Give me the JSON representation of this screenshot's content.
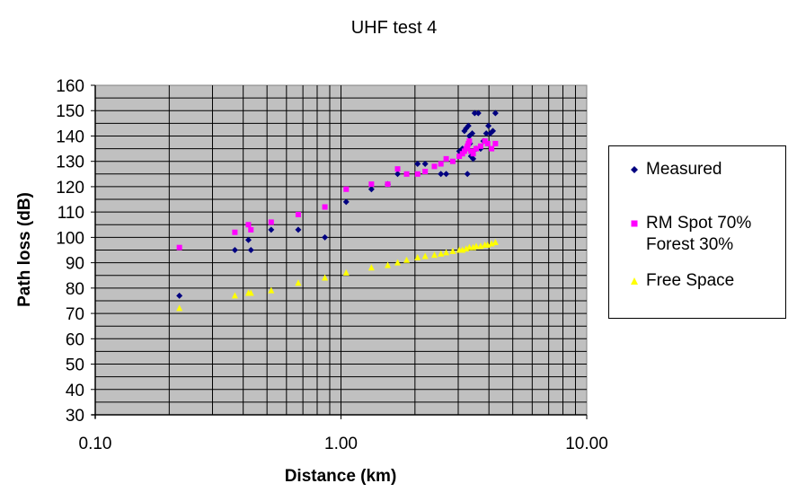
{
  "chart_data": {
    "type": "scatter",
    "title": "UHF test 4",
    "xlabel": "Distance (km)",
    "ylabel": "Path loss (dB)",
    "xscale": "log",
    "xlim": [
      0.1,
      10
    ],
    "ylim": [
      30,
      160
    ],
    "x_ticks": [
      "0.10",
      "1.00",
      "10.00"
    ],
    "y_ticks": [
      "30",
      "40",
      "50",
      "60",
      "70",
      "80",
      "90",
      "100",
      "110",
      "120",
      "130",
      "140",
      "150",
      "160"
    ],
    "grid": true,
    "plot_background": "#c0c0c0",
    "legend_position": "right",
    "series": [
      {
        "name": "Measured",
        "marker": "diamond",
        "color": "#000080",
        "points": [
          [
            0.22,
            77
          ],
          [
            0.37,
            95
          ],
          [
            0.42,
            99
          ],
          [
            0.43,
            95
          ],
          [
            0.52,
            103
          ],
          [
            0.67,
            103
          ],
          [
            0.86,
            100
          ],
          [
            1.05,
            114
          ],
          [
            1.33,
            119
          ],
          [
            1.55,
            121
          ],
          [
            1.7,
            125
          ],
          [
            2.05,
            129
          ],
          [
            2.2,
            129
          ],
          [
            2.55,
            125
          ],
          [
            2.68,
            125
          ],
          [
            3.03,
            134
          ],
          [
            3.12,
            135
          ],
          [
            3.18,
            142
          ],
          [
            3.23,
            143
          ],
          [
            3.27,
            125
          ],
          [
            3.3,
            144
          ],
          [
            3.33,
            140
          ],
          [
            3.35,
            137
          ],
          [
            3.38,
            132
          ],
          [
            3.42,
            141
          ],
          [
            3.45,
            131
          ],
          [
            3.5,
            149
          ],
          [
            3.55,
            135
          ],
          [
            3.62,
            149
          ],
          [
            3.7,
            135
          ],
          [
            3.8,
            138
          ],
          [
            3.9,
            141
          ],
          [
            3.98,
            144
          ],
          [
            4.05,
            141
          ],
          [
            4.15,
            142
          ],
          [
            4.25,
            149
          ]
        ]
      },
      {
        "name": "RM Spot 70% Forest 30%",
        "name_lines": [
          "RM Spot 70%",
          "Forest 30%"
        ],
        "marker": "square",
        "color": "#ff00ff",
        "points": [
          [
            0.22,
            96
          ],
          [
            0.37,
            102
          ],
          [
            0.42,
            105
          ],
          [
            0.43,
            103
          ],
          [
            0.52,
            106
          ],
          [
            0.67,
            109
          ],
          [
            0.86,
            112
          ],
          [
            1.05,
            119
          ],
          [
            1.33,
            121
          ],
          [
            1.55,
            121
          ],
          [
            1.7,
            127
          ],
          [
            1.85,
            125
          ],
          [
            2.05,
            125
          ],
          [
            2.2,
            126
          ],
          [
            2.4,
            128
          ],
          [
            2.55,
            129
          ],
          [
            2.68,
            131
          ],
          [
            2.85,
            130
          ],
          [
            3.03,
            132
          ],
          [
            3.12,
            133
          ],
          [
            3.18,
            134
          ],
          [
            3.23,
            135
          ],
          [
            3.27,
            136
          ],
          [
            3.3,
            137
          ],
          [
            3.33,
            138
          ],
          [
            3.38,
            134
          ],
          [
            3.45,
            133
          ],
          [
            3.55,
            135
          ],
          [
            3.7,
            136
          ],
          [
            3.85,
            138
          ],
          [
            3.95,
            137
          ],
          [
            4.1,
            135
          ],
          [
            4.25,
            137
          ]
        ]
      },
      {
        "name": "Free Space",
        "marker": "triangle",
        "color": "#ffff00",
        "points": [
          [
            0.22,
            72
          ],
          [
            0.37,
            77
          ],
          [
            0.42,
            78
          ],
          [
            0.43,
            78
          ],
          [
            0.52,
            79
          ],
          [
            0.67,
            82
          ],
          [
            0.86,
            84
          ],
          [
            1.05,
            86
          ],
          [
            1.33,
            88
          ],
          [
            1.55,
            89
          ],
          [
            1.7,
            90
          ],
          [
            1.85,
            91
          ],
          [
            2.05,
            92
          ],
          [
            2.2,
            92.5
          ],
          [
            2.4,
            93
          ],
          [
            2.55,
            93.5
          ],
          [
            2.68,
            94
          ],
          [
            2.85,
            94.5
          ],
          [
            3.03,
            95
          ],
          [
            3.12,
            95
          ],
          [
            3.23,
            95.5
          ],
          [
            3.33,
            96
          ],
          [
            3.45,
            96
          ],
          [
            3.55,
            96.5
          ],
          [
            3.7,
            96.5
          ],
          [
            3.85,
            97
          ],
          [
            3.95,
            97
          ],
          [
            4.1,
            97.5
          ],
          [
            4.25,
            98
          ]
        ]
      }
    ]
  }
}
